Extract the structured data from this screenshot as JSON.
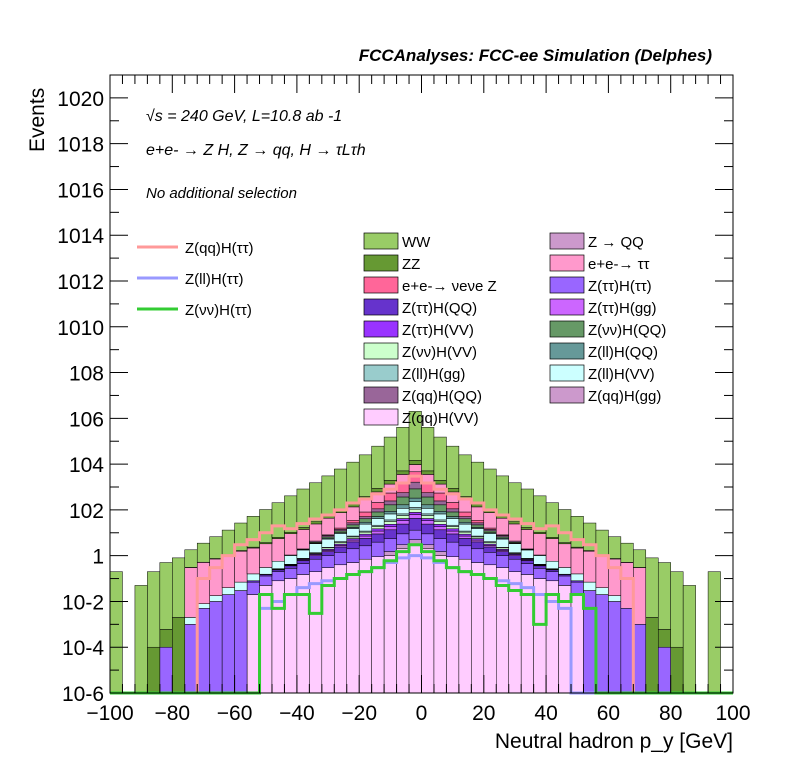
{
  "chart_data": {
    "type": "bar",
    "title": "FCCAnalyses: FCC-ee Simulation (Delphes)",
    "annotations": {
      "energy": "√s = 240 GeV, L=10.8 ab -1",
      "process": "e+e- → Z H, Z → qq, H → τLτh",
      "selection": "No additional selection"
    },
    "xlabel": "Neutral hadron p_y [GeV]",
    "ylabel": "Events",
    "xlim": [
      -100,
      100
    ],
    "ylim": [
      1e-06,
      1e+21
    ],
    "log_y": true,
    "x_ticks": [
      "−100",
      "−80",
      "−60",
      "−40",
      "−20",
      "0",
      "20",
      "40",
      "60",
      "80",
      "100"
    ],
    "y_ticks": [
      "10-6",
      "10-4",
      "10-2",
      "1",
      "102",
      "104",
      "106",
      "108",
      "1010",
      "1012",
      "1014",
      "1016",
      "1018",
      "1020"
    ],
    "bin_centers": [
      -98,
      -94,
      -90,
      -86,
      -82,
      -78,
      -74,
      -70,
      -66,
      -62,
      -58,
      -54,
      -50,
      -46,
      -42,
      -38,
      -34,
      -30,
      -26,
      -22,
      -18,
      -14,
      -10,
      -6,
      -2,
      2,
      6,
      10,
      14,
      18,
      22,
      26,
      30,
      34,
      38,
      42,
      46,
      50,
      54,
      58,
      62,
      66,
      70,
      74,
      78,
      82,
      86,
      90,
      94,
      98
    ],
    "stacked_series": [
      {
        "name": "Z(qq)H(VV)",
        "color": "#ffccff",
        "values": [
          0,
          0,
          0,
          0,
          0,
          0,
          0,
          0,
          0,
          0,
          0,
          0.02,
          0.05,
          0.08,
          0.1,
          0.15,
          0.2,
          0.3,
          0.4,
          0.5,
          0.7,
          0.9,
          1,
          2,
          3,
          2,
          1,
          0.9,
          0.7,
          0.5,
          0.4,
          0.3,
          0.2,
          0.15,
          0.1,
          0.08,
          0.05,
          0.02,
          0,
          0,
          0,
          0,
          0,
          0,
          0,
          0,
          0,
          0,
          0,
          0
        ]
      },
      {
        "name": "Z(qq)H(gg)",
        "color": "#cc99cc",
        "values": [
          0,
          0,
          0,
          0,
          0,
          0,
          0,
          0,
          0,
          0,
          0,
          0,
          0,
          0,
          0,
          0,
          0,
          0,
          0,
          0,
          0,
          0,
          0.5,
          1,
          2,
          1,
          0.5,
          0,
          0,
          0,
          0,
          0,
          0,
          0,
          0,
          0,
          0,
          0,
          0,
          0,
          0,
          0,
          0,
          0,
          0,
          0,
          0,
          0,
          0,
          0
        ]
      },
      {
        "name": "Z(ττ)H(ττ)",
        "color": "#9966ff",
        "values": [
          0,
          0,
          0,
          0,
          0.0001,
          0,
          0.001,
          0.005,
          0.01,
          0.02,
          0.03,
          0.05,
          0.08,
          0.12,
          0.18,
          0.3,
          0.5,
          0.7,
          1,
          1.5,
          2,
          3,
          4,
          6,
          8,
          6,
          4,
          3,
          2,
          1.5,
          1,
          0.7,
          0.5,
          0.3,
          0.18,
          0.12,
          0.08,
          0.05,
          0.03,
          0.02,
          0.01,
          0.005,
          0.001,
          0,
          0.0001,
          0,
          0,
          0,
          0,
          0
        ]
      },
      {
        "name": "Z(ττ)H(QQ)",
        "color": "#6633cc",
        "values": [
          0,
          0,
          0,
          0,
          0,
          0,
          0,
          0,
          0,
          0,
          0,
          0.01,
          0.02,
          0.04,
          0.08,
          0.15,
          0.3,
          0.5,
          1,
          2,
          3,
          5,
          8,
          15,
          30,
          15,
          8,
          5,
          3,
          2,
          1,
          0.5,
          0.3,
          0.15,
          0.08,
          0.04,
          0.02,
          0.01,
          0,
          0,
          0,
          0,
          0,
          0,
          0,
          0,
          0,
          0,
          0,
          0
        ]
      },
      {
        "name": "Z(ττ)H(gg)",
        "color": "#cc66ff",
        "values": [
          0,
          0,
          0,
          0,
          0,
          0,
          0,
          0,
          0,
          0,
          0,
          0,
          0.005,
          0.01,
          0.02,
          0.05,
          0.1,
          0.2,
          0.4,
          0.8,
          1.5,
          3,
          5,
          10,
          20,
          10,
          5,
          3,
          1.5,
          0.8,
          0.4,
          0.2,
          0.1,
          0.05,
          0.02,
          0.01,
          0.005,
          0,
          0,
          0,
          0,
          0,
          0,
          0,
          0,
          0,
          0,
          0,
          0,
          0
        ]
      },
      {
        "name": "Z(ττ)H(VV)",
        "color": "#9933ff",
        "values": [
          0,
          0,
          0,
          0,
          0,
          0,
          0,
          0,
          0,
          0,
          0,
          0,
          0,
          0.01,
          0.02,
          0.05,
          0.1,
          0.2,
          0.4,
          0.8,
          1.5,
          3,
          5,
          8,
          15,
          8,
          5,
          3,
          1.5,
          0.8,
          0.4,
          0.2,
          0.1,
          0.05,
          0.02,
          0.01,
          0,
          0,
          0,
          0,
          0,
          0,
          0,
          0,
          0,
          0,
          0,
          0,
          0,
          0
        ]
      },
      {
        "name": "Z(νν)H(VV)",
        "color": "#ccffcc",
        "values": [
          0,
          0,
          0,
          0,
          0,
          0,
          0,
          0,
          0,
          0,
          0,
          0,
          0,
          0.01,
          0.02,
          0.05,
          0.1,
          0.3,
          0.6,
          1,
          2,
          4,
          8,
          15,
          30,
          15,
          8,
          4,
          2,
          1,
          0.6,
          0.3,
          0.1,
          0.05,
          0.02,
          0.01,
          0,
          0,
          0,
          0,
          0,
          0,
          0,
          0,
          0,
          0,
          0,
          0,
          0,
          0
        ]
      },
      {
        "name": "Z(ll)H(gg)",
        "color": "#99cccc",
        "values": [
          0,
          0,
          0,
          0,
          0,
          0,
          0,
          0,
          0,
          0,
          0,
          0,
          0,
          0,
          0,
          0.02,
          0.05,
          0.1,
          0.3,
          0.6,
          1.2,
          2.5,
          5,
          10,
          20,
          10,
          5,
          2.5,
          1.2,
          0.6,
          0.3,
          0.1,
          0.05,
          0.02,
          0,
          0,
          0,
          0,
          0,
          0,
          0,
          0,
          0,
          0,
          0,
          0,
          0,
          0,
          0,
          0
        ]
      },
      {
        "name": "Z(ll)H(VV)",
        "color": "#ccffff",
        "values": [
          0,
          0,
          0,
          0,
          0,
          0,
          0.001,
          0.003,
          0.008,
          0.02,
          0.04,
          0.08,
          0.15,
          0.3,
          0.6,
          1,
          2,
          3,
          5,
          8,
          12,
          20,
          30,
          50,
          100,
          50,
          30,
          20,
          12,
          8,
          5,
          3,
          2,
          1,
          0.6,
          0.3,
          0.15,
          0.08,
          0.04,
          0.02,
          0.008,
          0,
          0,
          0,
          0,
          0,
          0,
          0,
          0,
          0
        ]
      },
      {
        "name": "Z(ll)H(QQ)",
        "color": "#669999",
        "values": [
          0,
          0,
          0,
          0,
          0,
          0,
          0,
          0,
          0,
          0,
          0,
          0,
          0,
          0,
          0.05,
          0.1,
          0.2,
          0.5,
          1,
          2,
          5,
          10,
          20,
          50,
          100,
          50,
          20,
          10,
          5,
          2,
          1,
          0.5,
          0.2,
          0.1,
          0.05,
          0,
          0,
          0,
          0,
          0,
          0,
          0,
          0,
          0,
          0,
          0,
          0,
          0,
          0,
          0
        ]
      },
      {
        "name": "Z(νν)H(QQ)",
        "color": "#669966",
        "values": [
          0,
          0,
          0,
          0,
          0,
          0,
          0,
          0,
          0,
          0,
          0,
          0,
          0,
          0,
          0,
          0.1,
          0.3,
          0.8,
          2,
          5,
          12,
          30,
          80,
          200,
          500,
          200,
          80,
          30,
          12,
          5,
          2,
          0.8,
          0.3,
          0.1,
          0,
          0,
          0,
          0,
          0,
          0,
          0,
          0,
          0,
          0,
          0,
          0,
          0,
          0,
          0,
          0
        ]
      },
      {
        "name": "Z(qq)H(QQ)",
        "color": "#996699",
        "values": [
          0,
          0,
          0,
          0,
          0,
          0,
          0,
          0,
          0,
          0,
          0,
          0,
          0,
          0,
          0,
          0,
          0.5,
          1,
          2,
          5,
          10,
          30,
          80,
          200,
          800,
          200,
          80,
          30,
          10,
          5,
          2,
          1,
          0.5,
          0,
          0,
          0,
          0,
          0,
          0,
          0,
          0,
          0,
          0,
          0,
          0,
          0,
          0,
          0,
          0,
          0
        ]
      },
      {
        "name": "e+e-→ νeνe Z",
        "color": "#ff6699",
        "values": [
          0,
          0,
          0,
          0,
          0,
          0,
          0,
          0,
          0,
          0,
          0,
          0,
          0,
          0,
          0,
          0,
          0,
          0.5,
          2,
          8,
          30,
          100,
          300,
          1000,
          3000,
          1000,
          300,
          100,
          30,
          8,
          2,
          0.5,
          0,
          0,
          0,
          0,
          0,
          0,
          0,
          0,
          0,
          0,
          0,
          0,
          0,
          0,
          0,
          0,
          0,
          0
        ]
      },
      {
        "name": "e+e-→ ττ",
        "color": "#ff99cc",
        "values": [
          0,
          0,
          0,
          0,
          0,
          0,
          0.3,
          0.5,
          0.7,
          1,
          1.5,
          2,
          3,
          5,
          8,
          12,
          20,
          35,
          60,
          100,
          200,
          400,
          800,
          2000,
          5000,
          2000,
          800,
          400,
          200,
          100,
          60,
          35,
          20,
          12,
          8,
          5,
          3,
          2,
          1.5,
          1,
          0.7,
          0.5,
          0.3,
          0,
          0,
          0,
          0,
          0,
          0,
          0
        ]
      },
      {
        "name": "Z → QQ",
        "color": "#cc99cc",
        "values": [
          0,
          0,
          0,
          0,
          0,
          0,
          0,
          0,
          0,
          0,
          0,
          0,
          0,
          0,
          0,
          0,
          0,
          0,
          0,
          0,
          0,
          0,
          0,
          5,
          10,
          5,
          0,
          0,
          0,
          0,
          0,
          0,
          0,
          0,
          0,
          0,
          0,
          0,
          0,
          0,
          0,
          0,
          0,
          0,
          0,
          0,
          0,
          0,
          0,
          0
        ]
      },
      {
        "name": "ZZ",
        "color": "#669933",
        "values": [
          0,
          0,
          0,
          0.0001,
          0.0005,
          0.002,
          0.005,
          0.01,
          0.03,
          0.06,
          0.1,
          0.2,
          0.4,
          0.8,
          1.5,
          3,
          6,
          12,
          25,
          50,
          100,
          250,
          600,
          1500,
          5000,
          1500,
          600,
          250,
          100,
          50,
          25,
          12,
          6,
          3,
          1.5,
          0.8,
          0.4,
          0.2,
          0.1,
          0.06,
          0.03,
          0.01,
          0.005,
          0.002,
          0.0005,
          0.0001,
          0,
          0,
          0,
          0
        ]
      },
      {
        "name": "WW",
        "color": "#99cc66",
        "values": [
          0.2,
          0,
          0.05,
          0.2,
          0.5,
          0.8,
          1.5,
          3,
          6,
          12,
          25,
          50,
          100,
          200,
          400,
          800,
          1500,
          3000,
          6000,
          12000,
          25000,
          60000,
          150000,
          400000,
          2000000,
          400000,
          150000,
          60000,
          25000,
          12000,
          6000,
          3000,
          1500,
          800,
          400,
          200,
          100,
          50,
          25,
          12,
          6,
          3,
          1.5,
          0.8,
          0.5,
          0.2,
          0.05,
          0,
          0.2,
          0
        ]
      }
    ],
    "overlay_series": [
      {
        "name": "Z(qq)H(ττ)",
        "color": "#ff9999",
        "values": [
          0,
          0,
          0,
          0,
          0,
          0,
          0,
          0.1,
          0.3,
          1,
          3,
          5,
          10,
          20,
          15,
          25,
          40,
          60,
          100,
          200,
          300,
          500,
          800,
          1500,
          3000,
          1500,
          800,
          500,
          300,
          200,
          100,
          60,
          40,
          25,
          15,
          20,
          10,
          5,
          3,
          1,
          0.3,
          0.1,
          0,
          0,
          0,
          0,
          0,
          0,
          0,
          0
        ]
      },
      {
        "name": "Z(ll)H(ττ)",
        "color": "#9999ff",
        "values": [
          0,
          0,
          0,
          0,
          0,
          0,
          0,
          0,
          0,
          0,
          0,
          0,
          0.005,
          0.01,
          0.02,
          0.04,
          0.06,
          0.08,
          0.1,
          0.15,
          0.2,
          0.3,
          0.5,
          0.8,
          1,
          0.8,
          0.5,
          0.3,
          0.2,
          0.15,
          0.1,
          0.08,
          0.06,
          0.04,
          0.02,
          0.01,
          0.005,
          0,
          0,
          0,
          0,
          0,
          0,
          0,
          0,
          0,
          0,
          0,
          0,
          0
        ]
      },
      {
        "name": "Z(νν)H(ττ)",
        "color": "#33cc33",
        "values": [
          0,
          0,
          0,
          0,
          0,
          0,
          0,
          0,
          0,
          0,
          0,
          0,
          0.02,
          0.005,
          0.02,
          0.02,
          0.003,
          0.05,
          0.1,
          0.15,
          0.2,
          0.3,
          0.6,
          1.5,
          3,
          1.5,
          0.6,
          0.3,
          0.2,
          0.15,
          0.1,
          0.05,
          0.03,
          0.02,
          0.001,
          0.02,
          0.01,
          0.02,
          0.005,
          0,
          0,
          0,
          0,
          0,
          0,
          0,
          0,
          0,
          0,
          0
        ]
      }
    ],
    "grid": false,
    "legend_placement": "top-center"
  }
}
